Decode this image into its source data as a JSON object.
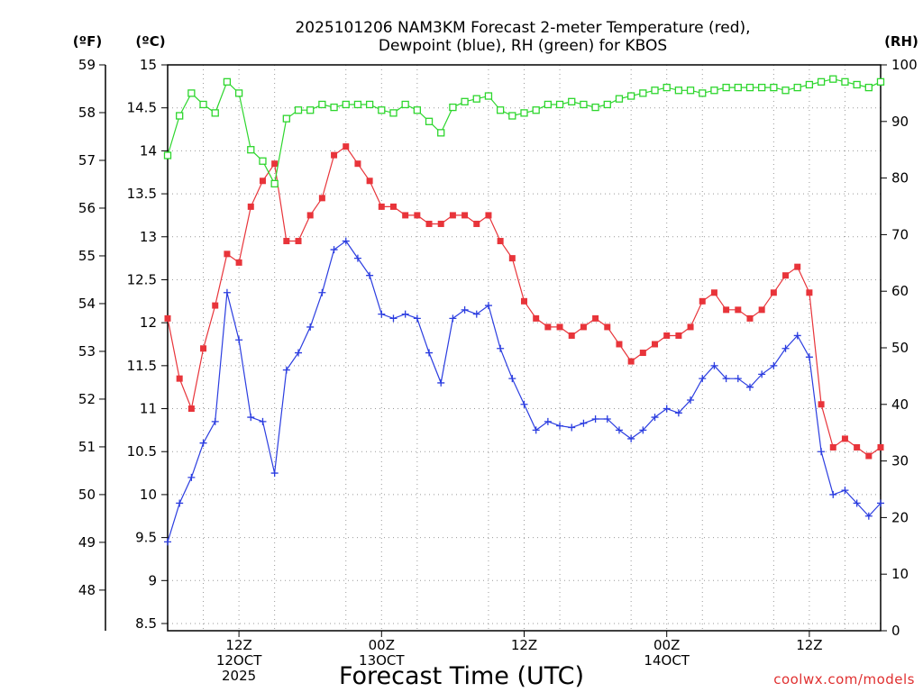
{
  "chart_data": {
    "type": "line",
    "title_line1": "2025101206 NAM3KM Forecast 2-meter Temperature (red),",
    "title_line2": "Dewpoint (blue), RH (green) for KBOS",
    "units": {
      "left_outer": "(ºF)",
      "left_inner": "(ºC)",
      "right": "(RH)"
    },
    "xlabel": "Forecast Time (UTC)",
    "credit": "coolwx.com/models",
    "x_ticks": [
      {
        "x": 6,
        "lines": [
          "12Z",
          "12OCT",
          "2025"
        ]
      },
      {
        "x": 18,
        "lines": [
          "00Z",
          "13OCT"
        ]
      },
      {
        "x": 30,
        "lines": [
          "12Z"
        ]
      },
      {
        "x": 42,
        "lines": [
          "00Z",
          "14OCT"
        ]
      },
      {
        "x": 54,
        "lines": [
          "12Z"
        ]
      }
    ],
    "xlim": [
      0,
      60
    ],
    "celsius_axis": {
      "min": 8.5,
      "max": 15,
      "ticks": [
        "8.5",
        "9",
        "9.5",
        "10",
        "10.5",
        "11",
        "11.5",
        "12",
        "12.5",
        "13",
        "13.5",
        "14",
        "14.5",
        "15"
      ]
    },
    "fahrenheit_axis": {
      "ticks": [
        "48",
        "49",
        "50",
        "51",
        "52",
        "53",
        "54",
        "55",
        "56",
        "57",
        "58",
        "59"
      ]
    },
    "rh_axis": {
      "min": 0,
      "max": 100,
      "ticks": [
        "0",
        "10",
        "20",
        "30",
        "40",
        "50",
        "60",
        "70",
        "80",
        "90",
        "100"
      ]
    },
    "series": [
      {
        "axis": "celsius",
        "color": "#e8343a",
        "marker": "filled-square",
        "values": [
          12.05,
          11.35,
          11.0,
          11.7,
          12.2,
          12.8,
          12.7,
          13.35,
          13.65,
          13.85,
          12.95,
          12.95,
          13.25,
          13.45,
          13.95,
          14.05,
          13.85,
          13.65,
          13.35,
          13.35,
          13.25,
          13.25,
          13.15,
          13.15,
          13.25,
          13.25,
          13.15,
          13.25,
          12.95,
          12.75,
          12.25,
          12.05,
          11.95,
          11.95,
          11.85,
          11.95,
          12.05,
          11.95,
          11.75,
          11.55,
          11.65,
          11.75,
          11.85,
          11.85,
          11.95,
          12.25,
          12.35,
          12.15,
          12.15,
          12.05,
          12.15,
          12.35,
          12.55,
          12.65,
          12.35,
          11.05,
          10.55,
          10.65,
          10.55,
          10.45,
          10.55
        ]
      },
      {
        "axis": "celsius",
        "color": "#2b3de0",
        "marker": "plus",
        "values": [
          9.45,
          9.9,
          10.2,
          10.6,
          10.85,
          12.35,
          11.8,
          10.9,
          10.85,
          10.25,
          11.45,
          11.65,
          11.95,
          12.35,
          12.85,
          12.95,
          12.75,
          12.55,
          12.1,
          12.05,
          12.1,
          12.05,
          11.65,
          11.3,
          12.05,
          12.15,
          12.1,
          12.2,
          11.7,
          11.35,
          11.05,
          10.75,
          10.85,
          10.8,
          10.78,
          10.83,
          10.88,
          10.88,
          10.75,
          10.65,
          10.75,
          10.9,
          11.0,
          10.95,
          11.1,
          11.35,
          11.5,
          11.35,
          11.35,
          11.25,
          11.4,
          11.5,
          11.7,
          11.85,
          11.6,
          10.5,
          10.0,
          10.05,
          9.9,
          9.75,
          9.9
        ]
      },
      {
        "axis": "rh",
        "color": "#2dd62d",
        "marker": "open-square",
        "values": [
          84,
          91,
          95,
          93,
          91.5,
          97,
          95,
          85,
          83,
          79,
          90.5,
          92,
          92,
          93,
          92.5,
          93,
          93,
          93,
          92,
          91.5,
          93,
          92,
          90,
          88,
          92.5,
          93.5,
          94,
          94.5,
          92,
          91,
          91.5,
          92,
          93,
          93,
          93.5,
          93,
          92.5,
          93,
          94,
          94.5,
          95,
          95.5,
          96,
          95.5,
          95.5,
          95,
          95.5,
          96,
          96,
          96,
          96,
          96,
          95.5,
          96,
          96.5,
          97,
          97.5,
          97,
          96.5,
          96,
          97
        ]
      }
    ]
  }
}
